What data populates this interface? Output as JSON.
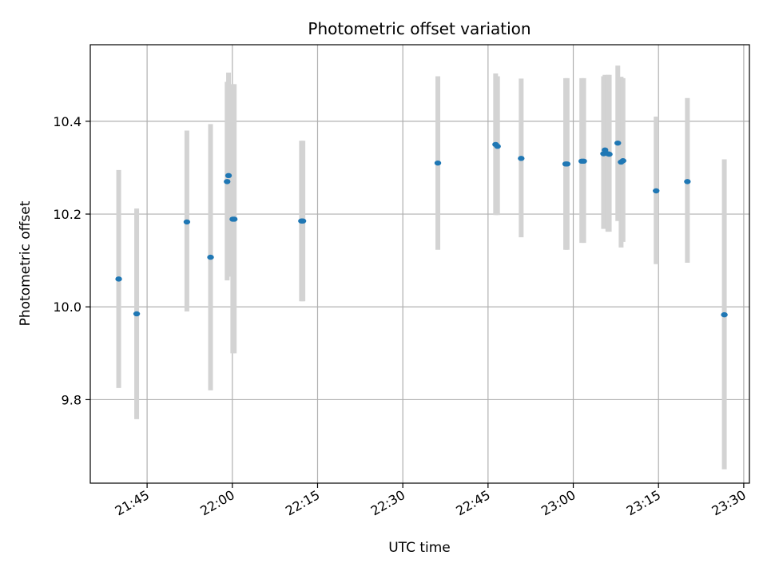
{
  "chart_data": {
    "type": "scatter",
    "title": "Photometric offset variation",
    "xlabel": "UTC time",
    "ylabel": "Photometric offset",
    "x_ticks": [
      "21:45",
      "22:00",
      "22:15",
      "22:30",
      "22:45",
      "23:00",
      "23:15",
      "23:30"
    ],
    "y_ticks": [
      "9.8",
      "10.0",
      "10.2",
      "10.4"
    ],
    "xlim": [
      "21:35",
      "23:31"
    ],
    "ylim": [
      9.62,
      10.565
    ],
    "grid": true,
    "colors": {
      "point": "#1f77b4",
      "error_bar": "#d3d3d3",
      "grid": "#b0b0b0"
    },
    "points": [
      {
        "t": "21:40:00",
        "y": 10.06,
        "lo": 9.825,
        "hi": 10.295
      },
      {
        "t": "21:43:10",
        "y": 9.985,
        "lo": 9.758,
        "hi": 10.212
      },
      {
        "t": "21:52:00",
        "y": 10.183,
        "lo": 9.99,
        "hi": 10.38
      },
      {
        "t": "21:56:10",
        "y": 10.107,
        "lo": 9.82,
        "hi": 10.394
      },
      {
        "t": "21:59:05",
        "y": 10.27,
        "lo": 10.057,
        "hi": 10.485
      },
      {
        "t": "21:59:20",
        "y": 10.283,
        "lo": 10.065,
        "hi": 10.505
      },
      {
        "t": "22:00:05",
        "y": 10.189,
        "lo": 9.9,
        "hi": 10.48
      },
      {
        "t": "22:00:20",
        "y": 10.189,
        "lo": 9.9,
        "hi": 10.48
      },
      {
        "t": "22:12:10",
        "y": 10.185,
        "lo": 10.012,
        "hi": 10.358
      },
      {
        "t": "22:12:25",
        "y": 10.185,
        "lo": 10.012,
        "hi": 10.358
      },
      {
        "t": "22:36:10",
        "y": 10.31,
        "lo": 10.123,
        "hi": 10.497
      },
      {
        "t": "22:46:20",
        "y": 10.35,
        "lo": 10.198,
        "hi": 10.503
      },
      {
        "t": "22:46:40",
        "y": 10.346,
        "lo": 10.198,
        "hi": 10.497
      },
      {
        "t": "22:50:50",
        "y": 10.32,
        "lo": 10.15,
        "hi": 10.492
      },
      {
        "t": "22:58:40",
        "y": 10.308,
        "lo": 10.123,
        "hi": 10.493
      },
      {
        "t": "22:58:55",
        "y": 10.308,
        "lo": 10.123,
        "hi": 10.493
      },
      {
        "t": "23:01:30",
        "y": 10.314,
        "lo": 10.138,
        "hi": 10.493
      },
      {
        "t": "23:01:50",
        "y": 10.314,
        "lo": 10.138,
        "hi": 10.493
      },
      {
        "t": "23:05:20",
        "y": 10.33,
        "lo": 10.168,
        "hi": 10.497
      },
      {
        "t": "23:05:35",
        "y": 10.338,
        "lo": 10.172,
        "hi": 10.5
      },
      {
        "t": "23:06:05",
        "y": 10.33,
        "lo": 10.162,
        "hi": 10.5
      },
      {
        "t": "23:06:20",
        "y": 10.329,
        "lo": 10.162,
        "hi": 10.5
      },
      {
        "t": "23:07:50",
        "y": 10.353,
        "lo": 10.185,
        "hi": 10.52
      },
      {
        "t": "23:08:25",
        "y": 10.312,
        "lo": 10.128,
        "hi": 10.496
      },
      {
        "t": "23:08:45",
        "y": 10.315,
        "lo": 10.14,
        "hi": 10.493
      },
      {
        "t": "23:14:35",
        "y": 10.25,
        "lo": 10.092,
        "hi": 10.41
      },
      {
        "t": "23:20:05",
        "y": 10.27,
        "lo": 10.095,
        "hi": 10.45
      },
      {
        "t": "23:26:35",
        "y": 9.983,
        "lo": 9.65,
        "hi": 10.318
      }
    ]
  }
}
